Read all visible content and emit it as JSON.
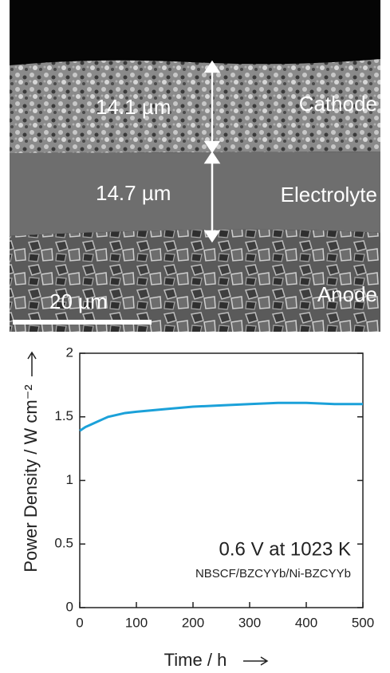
{
  "micrograph": {
    "labels": {
      "cathode_thickness": "14.1 µm",
      "cathode": "Cathode",
      "electrolyte_thickness": "14.7 µm",
      "electrolyte": "Electrolyte",
      "anode": "Anode",
      "scale_bar": "20 µm"
    }
  },
  "chart_data": {
    "type": "line",
    "x_label": "Time / h",
    "y_label": "Power Density / W cm⁻²",
    "annotations": [
      "0.6 V at 1023 K",
      "NBSCF/BZCYYb/Ni-BZCYYb"
    ],
    "x": [
      0,
      10,
      20,
      30,
      40,
      50,
      60,
      80,
      100,
      150,
      200,
      250,
      300,
      350,
      400,
      450,
      500
    ],
    "series": [
      {
        "color": "#1ba1d9",
        "values": [
          1.39,
          1.42,
          1.44,
          1.46,
          1.48,
          1.5,
          1.51,
          1.53,
          1.54,
          1.56,
          1.58,
          1.59,
          1.6,
          1.61,
          1.61,
          1.6,
          1.6
        ]
      }
    ],
    "xlim": [
      0,
      500
    ],
    "xticks": [
      0,
      100,
      200,
      300,
      400,
      500
    ],
    "ylim": [
      0,
      2
    ],
    "yticks": [
      0,
      0.5,
      1,
      1.5,
      2
    ]
  }
}
